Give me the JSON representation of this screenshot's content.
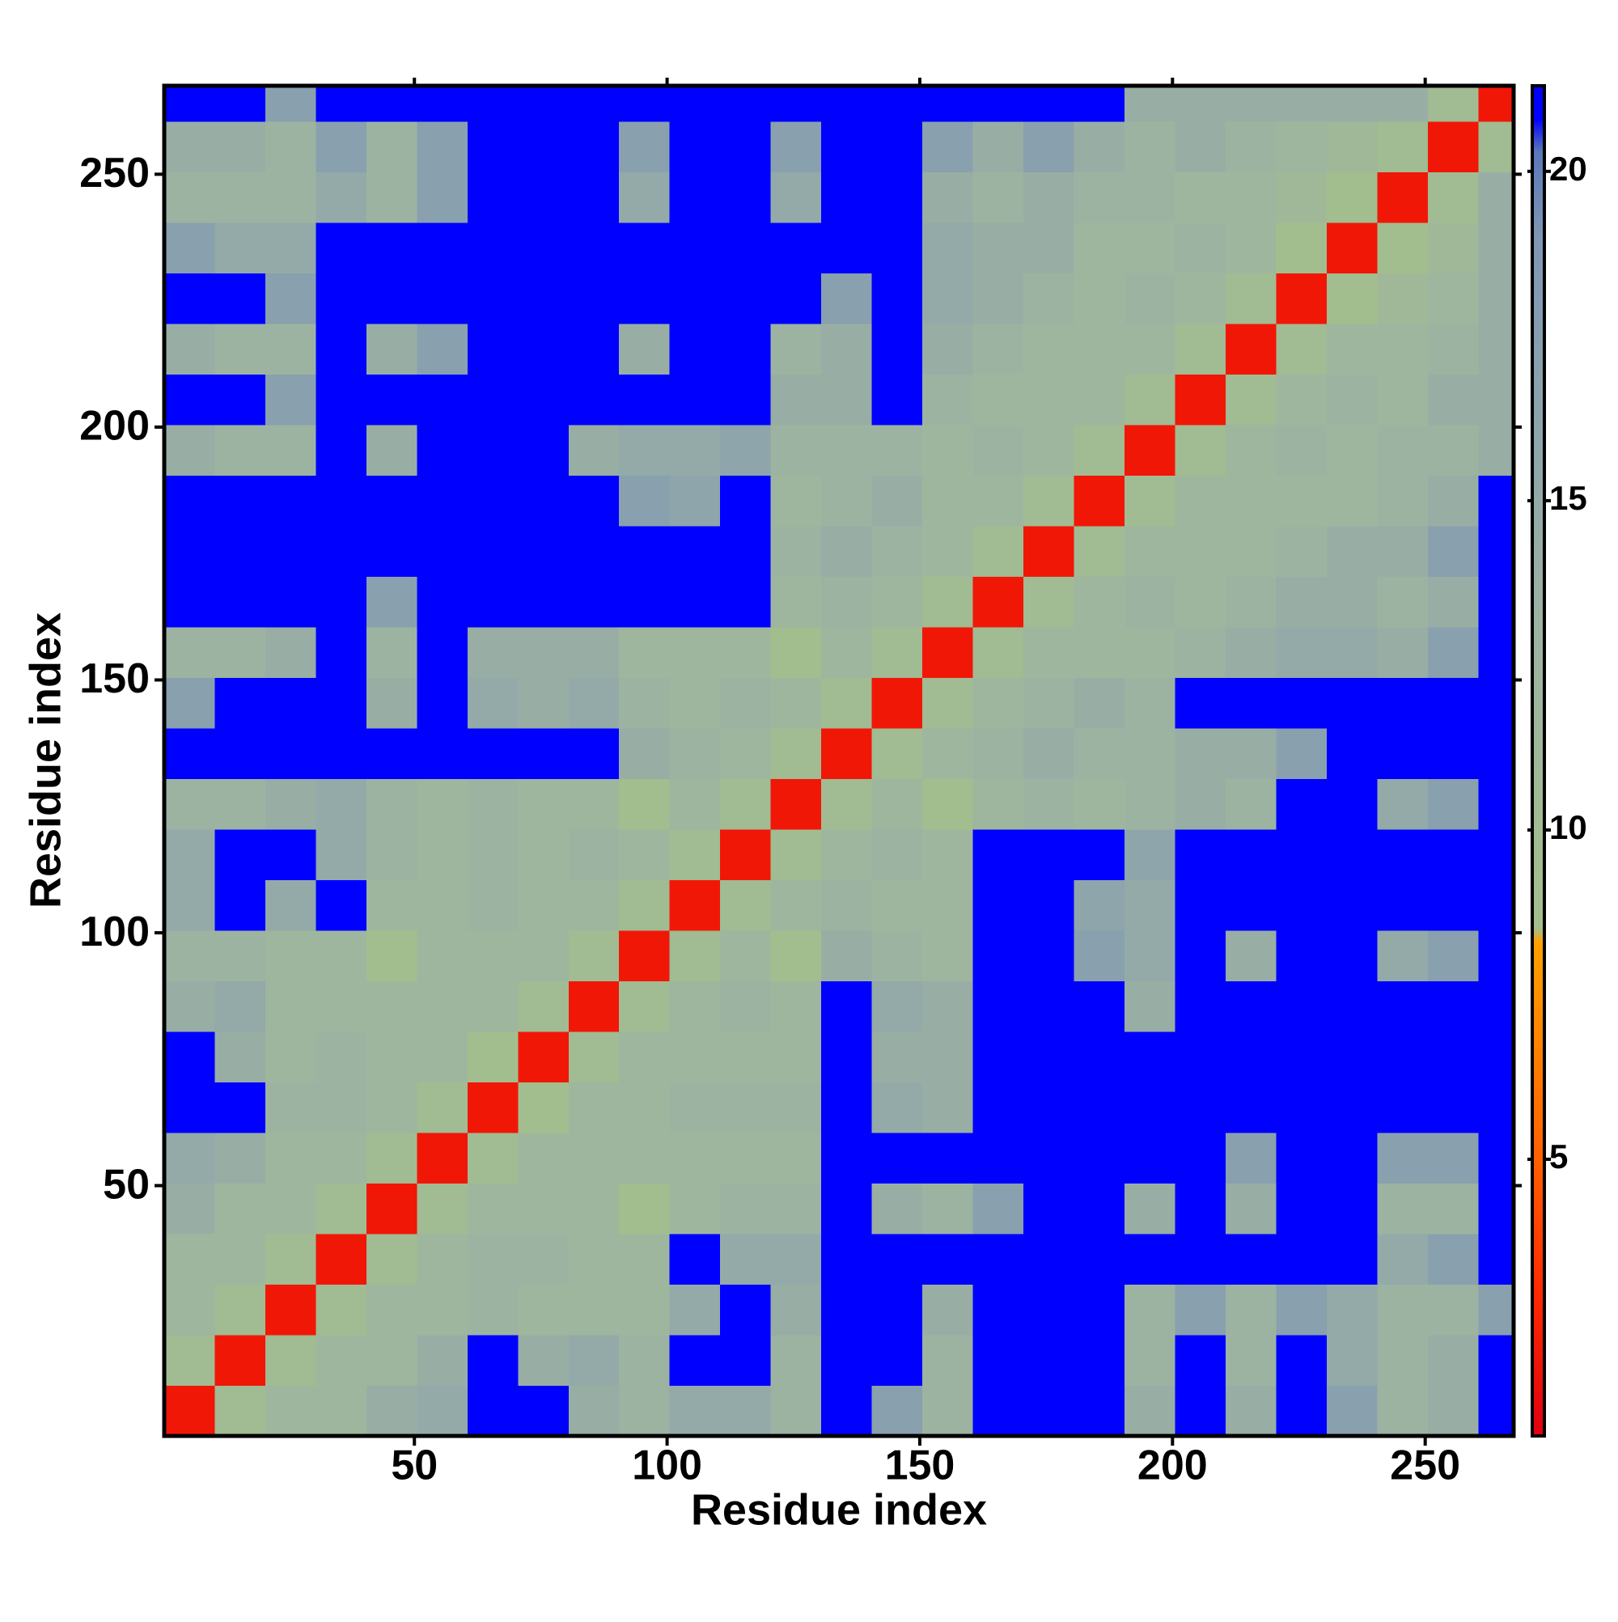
{
  "chart_data": {
    "type": "heatmap",
    "xlabel": "Residue index",
    "ylabel": "Residue index",
    "xlim": [
      0.5,
      267.5
    ],
    "ylim": [
      0.5,
      267.5
    ],
    "xticks": [
      50,
      100,
      150,
      200,
      250
    ],
    "yticks": [
      50,
      100,
      150,
      200,
      250
    ],
    "x_bins": [
      0.5,
      10.5,
      20.5,
      30.5,
      40.5,
      50.5,
      60.5,
      70.5,
      80.5,
      90.5,
      100.5,
      110.5,
      120.5,
      130.5,
      140.5,
      150.5,
      160.5,
      170.5,
      180.5,
      190.5,
      200.5,
      210.5,
      220.5,
      230.5,
      240.5,
      250.5,
      260.5,
      267.5
    ],
    "y_bins": [
      0.5,
      10.5,
      20.5,
      30.5,
      40.5,
      50.5,
      60.5,
      70.5,
      80.5,
      90.5,
      100.5,
      110.5,
      120.5,
      130.5,
      140.5,
      150.5,
      160.5,
      170.5,
      180.5,
      190.5,
      200.5,
      210.5,
      220.5,
      230.5,
      240.5,
      250.5,
      260.5,
      267.5
    ],
    "z": [
      [
        2,
        10,
        12,
        12,
        14,
        15,
        21,
        21,
        14,
        13,
        15,
        15,
        13,
        21,
        17,
        13,
        21,
        21,
        21,
        14,
        21,
        14,
        21,
        17,
        13,
        14,
        21
      ],
      [
        10,
        2,
        10,
        12,
        12,
        14,
        21,
        14,
        15,
        13,
        21,
        21,
        13,
        21,
        21,
        13,
        21,
        21,
        21,
        13,
        21,
        13,
        21,
        15,
        13,
        14,
        21
      ],
      [
        12,
        10,
        2,
        10,
        12,
        12,
        13,
        12,
        12,
        12,
        15,
        21,
        14,
        21,
        21,
        14,
        21,
        21,
        21,
        13,
        17,
        13,
        17,
        15,
        13,
        13,
        17
      ],
      [
        12,
        12,
        10,
        2,
        10,
        12,
        13,
        13,
        12,
        12,
        21,
        15,
        15,
        21,
        21,
        21,
        21,
        21,
        21,
        21,
        21,
        21,
        21,
        21,
        15,
        17,
        21
      ],
      [
        14,
        12,
        12,
        10,
        2,
        10,
        12,
        12,
        12,
        9,
        12,
        13,
        13,
        21,
        14,
        13,
        17,
        21,
        21,
        14,
        21,
        14,
        21,
        21,
        13,
        13,
        21
      ],
      [
        15,
        14,
        12,
        12,
        10,
        2,
        10,
        12,
        12,
        12,
        12,
        12,
        12,
        21,
        21,
        21,
        21,
        21,
        21,
        21,
        21,
        17,
        21,
        21,
        17,
        17,
        21
      ],
      [
        21,
        21,
        13,
        13,
        12,
        10,
        2,
        9,
        12,
        12,
        13,
        13,
        13,
        21,
        15,
        14,
        21,
        21,
        21,
        21,
        21,
        21,
        21,
        21,
        21,
        21,
        21
      ],
      [
        21,
        14,
        12,
        13,
        12,
        12,
        9,
        2,
        10,
        12,
        12,
        12,
        12,
        21,
        14,
        14,
        21,
        21,
        21,
        21,
        21,
        21,
        21,
        21,
        21,
        21,
        21
      ],
      [
        14,
        15,
        12,
        12,
        12,
        12,
        12,
        10,
        2,
        10,
        12,
        13,
        12,
        21,
        15,
        14,
        21,
        21,
        21,
        14,
        21,
        21,
        21,
        21,
        21,
        21,
        21
      ],
      [
        13,
        13,
        12,
        12,
        9,
        12,
        12,
        12,
        10,
        2,
        10,
        12,
        9,
        14,
        13,
        12,
        21,
        21,
        17,
        15,
        21,
        14,
        21,
        21,
        15,
        17,
        21
      ],
      [
        15,
        21,
        15,
        21,
        12,
        12,
        13,
        12,
        12,
        10,
        2,
        10,
        12,
        13,
        12,
        12,
        21,
        21,
        16,
        15,
        21,
        21,
        21,
        21,
        21,
        21,
        21
      ],
      [
        15,
        21,
        21,
        15,
        13,
        12,
        13,
        12,
        13,
        12,
        10,
        2,
        10,
        12,
        13,
        12,
        21,
        21,
        21,
        16,
        21,
        21,
        21,
        21,
        21,
        21,
        21
      ],
      [
        13,
        13,
        14,
        15,
        13,
        12,
        13,
        12,
        12,
        9,
        12,
        10,
        2,
        10,
        12,
        9,
        12,
        13,
        12,
        13,
        14,
        13,
        21,
        21,
        15,
        17,
        21
      ],
      [
        21,
        21,
        21,
        21,
        21,
        21,
        21,
        21,
        21,
        14,
        13,
        12,
        10,
        2,
        10,
        12,
        13,
        14,
        13,
        13,
        14,
        14,
        17,
        21,
        21,
        21,
        21
      ],
      [
        17,
        21,
        21,
        21,
        14,
        21,
        15,
        14,
        15,
        13,
        12,
        13,
        12,
        10,
        2,
        10,
        12,
        13,
        14,
        13,
        21,
        21,
        21,
        21,
        21,
        21,
        21
      ],
      [
        13,
        13,
        14,
        21,
        13,
        21,
        14,
        14,
        14,
        12,
        12,
        12,
        9,
        12,
        10,
        2,
        10,
        12,
        12,
        12,
        13,
        14,
        15,
        15,
        14,
        17,
        21
      ],
      [
        21,
        21,
        21,
        21,
        17,
        21,
        21,
        21,
        21,
        21,
        21,
        21,
        12,
        13,
        12,
        10,
        2,
        10,
        12,
        13,
        12,
        13,
        14,
        14,
        13,
        14,
        21
      ],
      [
        21,
        21,
        21,
        21,
        21,
        21,
        21,
        21,
        21,
        21,
        21,
        21,
        13,
        14,
        13,
        12,
        10,
        2,
        10,
        12,
        12,
        12,
        13,
        14,
        14,
        17,
        21
      ],
      [
        21,
        21,
        21,
        21,
        21,
        21,
        21,
        21,
        21,
        17,
        16,
        21,
        12,
        13,
        14,
        12,
        12,
        10,
        2,
        10,
        12,
        12,
        12,
        12,
        13,
        14,
        21
      ],
      [
        14,
        13,
        13,
        21,
        14,
        21,
        21,
        21,
        14,
        15,
        15,
        16,
        13,
        13,
        13,
        12,
        13,
        12,
        10,
        2,
        10,
        12,
        13,
        12,
        13,
        13,
        14
      ],
      [
        21,
        21,
        17,
        21,
        21,
        21,
        21,
        21,
        21,
        21,
        21,
        21,
        14,
        14,
        21,
        13,
        12,
        12,
        12,
        10,
        2,
        10,
        12,
        13,
        12,
        14,
        14
      ],
      [
        14,
        13,
        13,
        21,
        14,
        17,
        21,
        21,
        21,
        14,
        21,
        21,
        13,
        14,
        21,
        14,
        13,
        12,
        12,
        12,
        10,
        2,
        10,
        12,
        12,
        13,
        14
      ],
      [
        21,
        21,
        17,
        21,
        21,
        21,
        21,
        21,
        21,
        21,
        21,
        21,
        21,
        17,
        21,
        15,
        14,
        13,
        12,
        13,
        12,
        10,
        2,
        9,
        11,
        12,
        14
      ],
      [
        17,
        15,
        15,
        21,
        21,
        21,
        21,
        21,
        21,
        21,
        21,
        21,
        21,
        21,
        21,
        15,
        14,
        14,
        12,
        12,
        13,
        12,
        9,
        2,
        9,
        11,
        14
      ],
      [
        13,
        13,
        13,
        15,
        13,
        17,
        21,
        21,
        21,
        15,
        21,
        21,
        15,
        21,
        21,
        14,
        13,
        14,
        13,
        13,
        12,
        12,
        11,
        9,
        2,
        10,
        14
      ],
      [
        14,
        14,
        13,
        17,
        13,
        17,
        21,
        21,
        21,
        17,
        21,
        21,
        17,
        21,
        21,
        17,
        14,
        17,
        14,
        13,
        14,
        13,
        12,
        11,
        10,
        2,
        10
      ],
      [
        21,
        21,
        17,
        21,
        21,
        21,
        21,
        21,
        21,
        21,
        21,
        21,
        21,
        21,
        21,
        21,
        21,
        21,
        21,
        14,
        14,
        14,
        14,
        14,
        14,
        10,
        2
      ]
    ],
    "colorbar": {
      "clim": [
        0.8,
        21.3
      ],
      "ticks": [
        5,
        10,
        15,
        20
      ],
      "stops": [
        [
          0.8,
          "#e00010"
        ],
        [
          3,
          "#ff2a00"
        ],
        [
          5,
          "#ff6000"
        ],
        [
          8.3,
          "#ffa000"
        ],
        [
          8.5,
          "#a3bf8c"
        ],
        [
          13,
          "#9db3a2"
        ],
        [
          19,
          "#7f97b4"
        ],
        [
          20.3,
          "#5a78b8"
        ],
        [
          20.8,
          "#0000ff"
        ],
        [
          21.3,
          "#0000ff"
        ]
      ]
    }
  }
}
